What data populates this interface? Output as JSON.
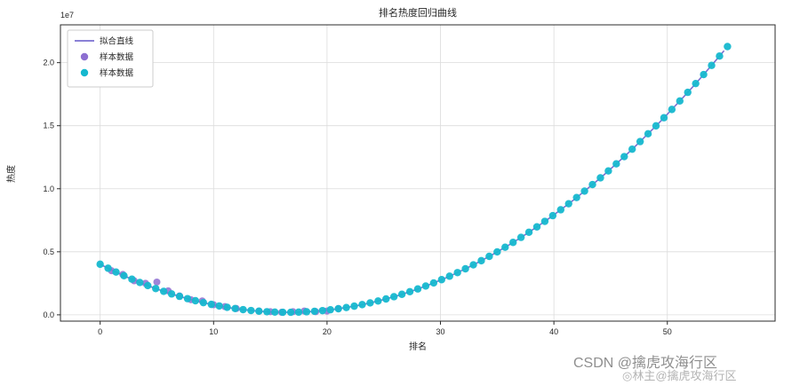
{
  "title": "排名热度回归曲线",
  "watermark": {
    "primary": "CSDN @擒虎攻海行区",
    "secondary": "◎林主@擒虎攻海行区"
  },
  "chart_data": {
    "type": "scatter",
    "title": "排名热度回归曲线",
    "xlabel": "排名",
    "ylabel": "热度",
    "y_scale_label": "1e7",
    "xlim": [
      -3.5,
      59.5
    ],
    "ylim": [
      -500000,
      23000000
    ],
    "x_ticks": [
      0,
      10,
      20,
      30,
      40,
      50
    ],
    "y_ticks": [
      0,
      5000000,
      10000000,
      15000000,
      20000000
    ],
    "y_tick_labels": [
      "0.0",
      "0.5",
      "1.0",
      "1.5",
      "2.0"
    ],
    "grid": true,
    "legend": {
      "position": "upper-left",
      "entries": [
        {
          "label": "拟合直线",
          "type": "line",
          "color": "#7a6fd0"
        },
        {
          "label": "样本数据",
          "type": "dot",
          "color": "#8d6fd1"
        },
        {
          "label": "样本数据",
          "type": "dot",
          "color": "#16b8cf"
        }
      ]
    },
    "fit_curve": {
      "model": "quadratic  y = a*(x-h)^2 + k",
      "a": 14000,
      "h": 16.5,
      "k": 200000,
      "x_start": 0,
      "x_end": 55.3,
      "dot_step": 0.7,
      "dot_color": "#16b8cf",
      "line_color": "#7a6fd0"
    },
    "samples": [
      [
        1,
        3500000
      ],
      [
        2,
        3200000
      ],
      [
        3,
        2700000
      ],
      [
        4,
        2500000
      ],
      [
        5,
        2600000
      ],
      [
        6,
        1900000
      ],
      [
        7,
        1500000
      ],
      [
        8,
        1200000
      ],
      [
        9,
        1100000
      ],
      [
        10,
        800000
      ],
      [
        11,
        650000
      ],
      [
        12,
        500000
      ],
      [
        14,
        300000
      ],
      [
        15,
        250000
      ],
      [
        16,
        200000
      ],
      [
        17,
        250000
      ],
      [
        18,
        300000
      ],
      [
        19,
        250000
      ],
      [
        20,
        300000
      ],
      [
        21,
        500000
      ]
    ],
    "samples_color": "#8d6fd1"
  }
}
